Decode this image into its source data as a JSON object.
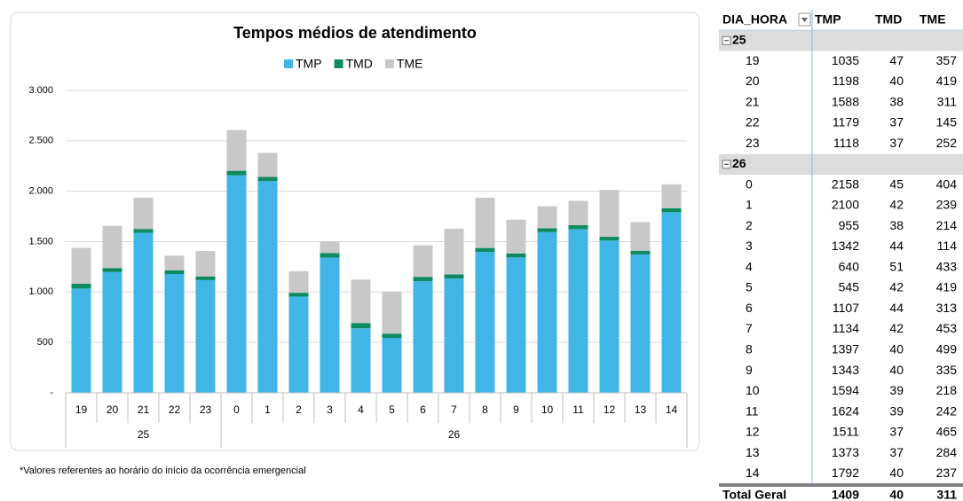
{
  "chart_data": {
    "type": "stacked_bar",
    "title": "Tempos médios de atendimento",
    "categories": [
      "19",
      "20",
      "21",
      "22",
      "23",
      "0",
      "1",
      "2",
      "3",
      "4",
      "5",
      "6",
      "7",
      "8",
      "9",
      "10",
      "11",
      "12",
      "13",
      "14"
    ],
    "x_groups": [
      "25",
      "25",
      "25",
      "25",
      "25",
      "26",
      "26",
      "26",
      "26",
      "26",
      "26",
      "26",
      "26",
      "26",
      "26",
      "26",
      "26",
      "26",
      "26",
      "26"
    ],
    "series": [
      {
        "name": "TMP",
        "color": "#41b6e6",
        "values": [
          1035,
          1198,
          1588,
          1179,
          1118,
          2158,
          2100,
          955,
          1342,
          640,
          545,
          1107,
          1134,
          1397,
          1343,
          1594,
          1624,
          1511,
          1373,
          1792
        ]
      },
      {
        "name": "TMD",
        "color": "#0e8a5f",
        "values": [
          47,
          40,
          38,
          37,
          37,
          45,
          42,
          38,
          44,
          51,
          42,
          44,
          42,
          40,
          40,
          39,
          39,
          37,
          37,
          40
        ]
      },
      {
        "name": "TME",
        "color": "#c8c8c8",
        "values": [
          357,
          419,
          311,
          145,
          252,
          404,
          239,
          214,
          114,
          433,
          419,
          313,
          453,
          499,
          335,
          218,
          242,
          465,
          284,
          237
        ]
      }
    ],
    "ylim": [
      0,
      3000
    ],
    "yticks": [
      {
        "value": 0,
        "label": "-"
      },
      500,
      {
        "value": 1000,
        "label": "1.000"
      },
      {
        "value": 1500,
        "label": "1.500"
      },
      {
        "value": 2000,
        "label": "2.000"
      },
      {
        "value": 2500,
        "label": "2.500"
      },
      {
        "value": 3000,
        "label": "3.000"
      }
    ],
    "grid": true,
    "legend": "top",
    "footnote": "*Valores referentes ao horário do início da ocorrência emergencial"
  },
  "table": {
    "columns": [
      "DIA_HORA",
      "TMP",
      "TMD",
      "TME"
    ],
    "groups": [
      {
        "label": "25",
        "rows": [
          [
            "19",
            1035,
            47,
            357
          ],
          [
            "20",
            1198,
            40,
            419
          ],
          [
            "21",
            1588,
            38,
            311
          ],
          [
            "22",
            1179,
            37,
            145
          ],
          [
            "23",
            1118,
            37,
            252
          ]
        ]
      },
      {
        "label": "26",
        "rows": [
          [
            "0",
            2158,
            45,
            404
          ],
          [
            "1",
            2100,
            42,
            239
          ],
          [
            "2",
            955,
            38,
            214
          ],
          [
            "3",
            1342,
            44,
            114
          ],
          [
            "4",
            640,
            51,
            433
          ],
          [
            "5",
            545,
            42,
            419
          ],
          [
            "6",
            1107,
            44,
            313
          ],
          [
            "7",
            1134,
            42,
            453
          ],
          [
            "8",
            1397,
            40,
            499
          ],
          [
            "9",
            1343,
            40,
            335
          ],
          [
            "10",
            1594,
            39,
            218
          ],
          [
            "11",
            1624,
            39,
            242
          ],
          [
            "12",
            1511,
            37,
            465
          ],
          [
            "13",
            1373,
            37,
            284
          ],
          [
            "14",
            1792,
            40,
            237
          ]
        ]
      }
    ],
    "total": [
      "Total Geral",
      1409,
      40,
      311
    ]
  }
}
